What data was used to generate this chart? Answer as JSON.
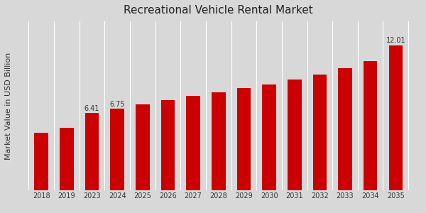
{
  "title": "Recreational Vehicle Rental Market",
  "ylabel": "Market Value in USD Billion",
  "categories": [
    "2018",
    "2019",
    "2023",
    "2024",
    "2025",
    "2026",
    "2027",
    "2028",
    "2029",
    "2030",
    "2031",
    "2032",
    "2033",
    "2034",
    "2035"
  ],
  "values": [
    4.8,
    5.2,
    6.41,
    6.75,
    7.1,
    7.5,
    7.85,
    8.1,
    8.45,
    8.8,
    9.2,
    9.6,
    10.1,
    10.7,
    12.01
  ],
  "bar_color": "#CC0000",
  "bar_labels": {
    "2023": "6.41",
    "2024": "6.75",
    "2035": "12.01"
  },
  "background_color": "#d8d8d8",
  "title_fontsize": 11,
  "label_fontsize": 7,
  "tick_fontsize": 7,
  "ylabel_fontsize": 8,
  "ylim_max": 14.0,
  "footer_color": "#CC0000",
  "grid_line_color": "#ffffff"
}
